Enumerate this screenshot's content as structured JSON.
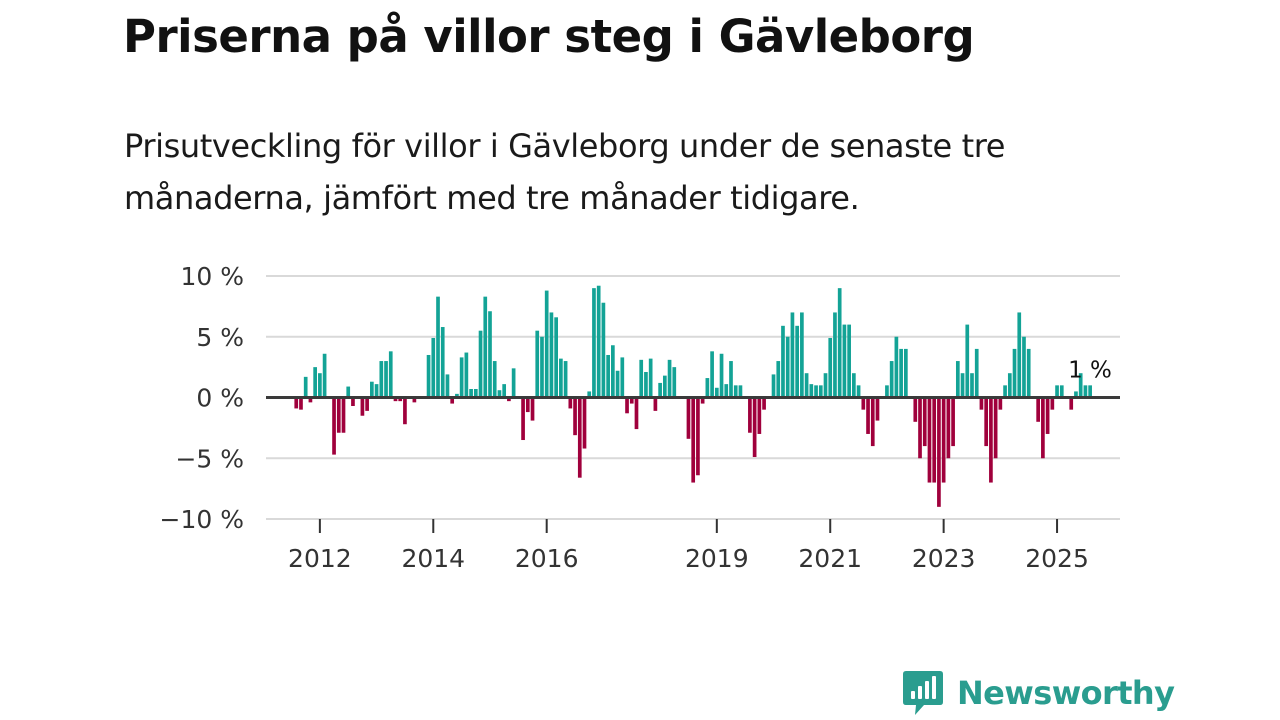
{
  "headline": "Priserna på villor steg i Gävleborg",
  "subtitle": "Prisutveckling för villor i Gävleborg under de senaste tre månaderna, jämfört med tre månader tidigare.",
  "brand": {
    "name": "Newsworthy",
    "icon": "newsworthy-logo-icon"
  },
  "colors": {
    "positive": "#13a396",
    "negative": "#a0003c",
    "grid": "#d9d9d9",
    "zero_line": "#3a3a3a",
    "brand": "#2a9d8f"
  },
  "chart_data": {
    "type": "bar",
    "title": "Priserna på villor steg i Gävleborg",
    "xlabel": "",
    "ylabel": "",
    "unit": "%",
    "ylim": [
      -10,
      10
    ],
    "y_ticks": [
      10,
      5,
      0,
      -5,
      -10
    ],
    "y_tick_labels": [
      "10 %",
      "5 %",
      "0 %",
      "−5 %",
      "−10 %"
    ],
    "x_ticks": [
      2012,
      2014,
      2016,
      2019,
      2021,
      2023,
      2025
    ],
    "x_tick_labels": [
      "2012",
      "2014",
      "2016",
      "2019",
      "2021",
      "2023",
      "2025"
    ],
    "x_range": [
      2011.05,
      2026.11
    ],
    "start": {
      "year": 2011,
      "month": 8
    },
    "values": [
      -0.9,
      -1.0,
      1.7,
      -0.4,
      2.5,
      2.0,
      3.6,
      0.0,
      -4.7,
      -2.9,
      -2.9,
      0.9,
      -0.7,
      0.0,
      -1.5,
      -1.1,
      1.3,
      1.1,
      3.0,
      3.0,
      3.8,
      -0.3,
      -0.3,
      -2.2,
      0.0,
      -0.4,
      0.0,
      0.1,
      3.5,
      4.9,
      8.3,
      5.8,
      1.9,
      -0.5,
      0.3,
      3.3,
      3.7,
      0.7,
      0.7,
      5.5,
      8.3,
      7.1,
      3.0,
      0.6,
      1.1,
      -0.3,
      2.4,
      0.0,
      -3.5,
      -1.2,
      -1.9,
      5.5,
      5.0,
      8.8,
      7.0,
      6.6,
      3.2,
      3.0,
      -0.9,
      -3.1,
      -6.6,
      -4.2,
      0.5,
      9.0,
      9.2,
      7.8,
      3.5,
      4.3,
      2.2,
      3.3,
      -1.3,
      -0.5,
      -2.6,
      3.1,
      2.1,
      3.2,
      -1.1,
      1.2,
      1.8,
      3.1,
      2.5,
      0.1,
      0.0,
      -3.4,
      -7.0,
      -6.4,
      -0.5,
      1.6,
      3.8,
      0.8,
      3.6,
      1.1,
      3.0,
      1.0,
      1.0,
      0.0,
      -2.9,
      -4.9,
      -3.0,
      -1.0,
      0.0,
      1.9,
      3.0,
      5.9,
      5.0,
      7.0,
      5.9,
      7.0,
      2.0,
      1.1,
      1.0,
      1.0,
      2.0,
      4.9,
      7.0,
      9.0,
      6.0,
      6.0,
      2.0,
      1.0,
      -1.0,
      -3.0,
      -4.0,
      -1.9,
      0.0,
      1.0,
      3.0,
      5.0,
      4.0,
      4.0,
      0.0,
      -2.0,
      -5.0,
      -4.0,
      -7.0,
      -7.0,
      -9.0,
      -7.0,
      -5.0,
      -4.0,
      3.0,
      2.0,
      6.0,
      2.0,
      4.0,
      -1.0,
      -4.0,
      -7.0,
      -5.0,
      -1.0,
      1.0,
      2.0,
      4.0,
      7.0,
      5.0,
      4.0,
      0.0,
      -2.0,
      -5.0,
      -3.0,
      -1.0,
      1.0,
      1.0,
      0.0,
      -1.0,
      0.5,
      2.0,
      1.0,
      1.0
    ],
    "last_value_label": "1 %"
  }
}
